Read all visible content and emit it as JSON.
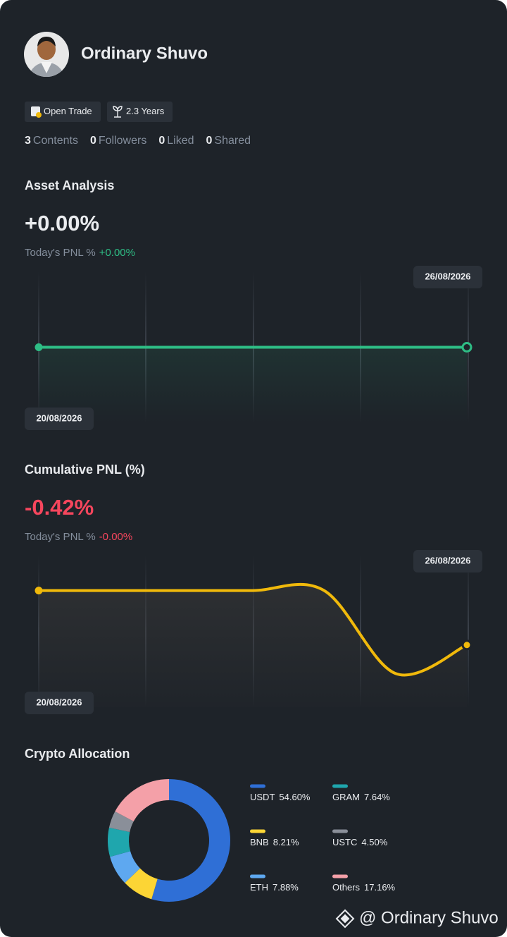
{
  "profile": {
    "name": "Ordinary Shuvo",
    "badges": [
      "Open Trade",
      "2.3 Years"
    ],
    "stats": [
      {
        "count": "3",
        "label": "Contents"
      },
      {
        "count": "0",
        "label": "Followers"
      },
      {
        "count": "0",
        "label": "Liked"
      },
      {
        "count": "0",
        "label": "Shared"
      }
    ]
  },
  "chart_data": [
    {
      "type": "line",
      "title": "Asset Analysis",
      "headline": "+0.00%",
      "today_label": "Today's PNL %",
      "today_value": "+0.00%",
      "x": [
        "20/08/2026",
        null,
        null,
        null,
        null,
        null,
        "26/08/2026"
      ],
      "values": [
        0,
        0,
        0,
        0,
        0,
        0,
        0
      ],
      "ylim": [
        -1,
        1
      ],
      "color": "#2ebd85"
    },
    {
      "type": "line",
      "title": "Cumulative PNL (%)",
      "headline": "-0.42%",
      "today_label": "Today's PNL %",
      "today_value": "-0.00%",
      "x": [
        "20/08/2026",
        null,
        null,
        null,
        null,
        null,
        "26/08/2026"
      ],
      "values": [
        0,
        0,
        0,
        0,
        0,
        -0.64,
        -0.42
      ],
      "ylim": [
        -0.9,
        0.27
      ],
      "color": "#f0b90b"
    },
    {
      "type": "pie",
      "title": "Crypto Allocation",
      "categories": [
        "USDT",
        "BNB",
        "ETH",
        "GRAM",
        "USTC",
        "Others"
      ],
      "values": [
        54.6,
        8.21,
        7.88,
        7.64,
        4.5,
        17.16
      ],
      "value_labels": [
        "54.60%",
        "8.21%",
        "7.88%",
        "7.64%",
        "4.50%",
        "17.16%"
      ],
      "colors": [
        "#2f6fd6",
        "#fcd535",
        "#5ea8f0",
        "#1fa6ad",
        "#8a8f99",
        "#f4a0a8"
      ]
    }
  ],
  "watermark": "@ Ordinary Shuvo"
}
